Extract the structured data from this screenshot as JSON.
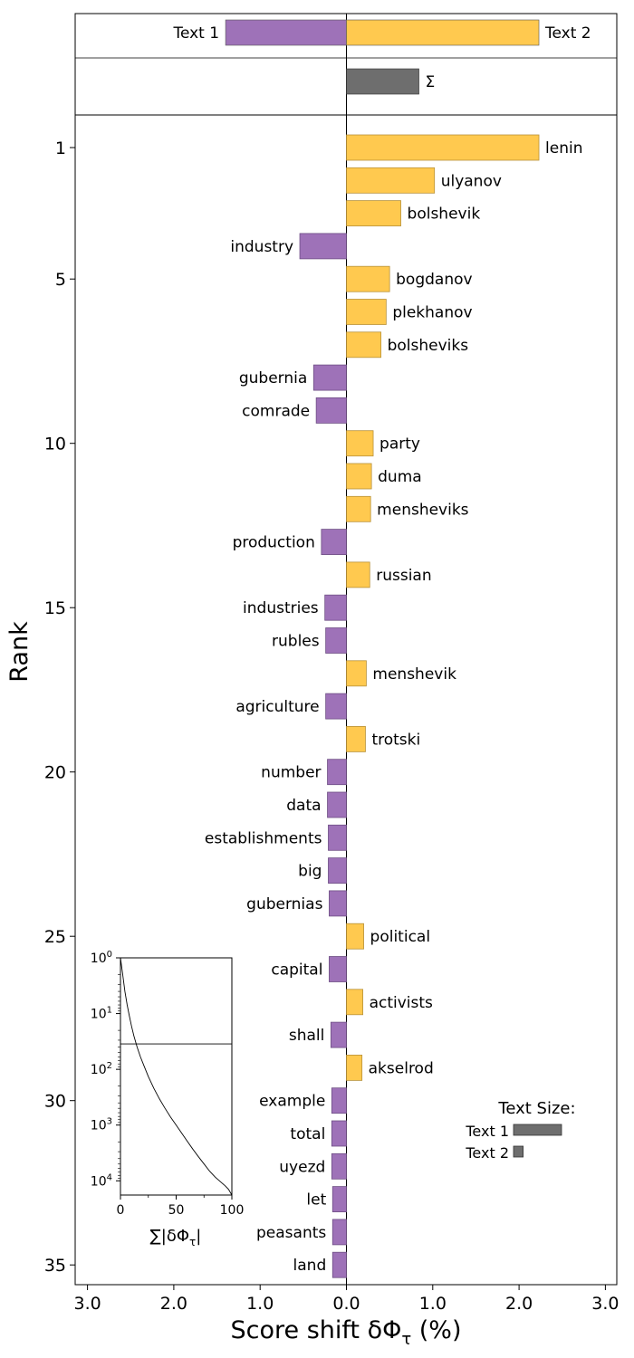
{
  "chart_data": {
    "type": "bar",
    "orientation": "horizontal",
    "xlabel": "Score shift δΦ",
    "xlabel_sub": "τ",
    "xlabel_suffix": " (%)",
    "ylabel": "Rank",
    "xlim": [
      -3.0,
      3.0
    ],
    "x_tick_labels": [
      "3.0",
      "2.0",
      "1.0",
      "0.0",
      "1.0",
      "2.0",
      "3.0"
    ],
    "x_tick_values": [
      -3,
      -2,
      -1,
      0,
      1,
      2,
      3
    ],
    "y_ticks": [
      1,
      5,
      10,
      15,
      20,
      25,
      30,
      35
    ],
    "colors": {
      "text1": "#9e72b8",
      "text2": "#ffc94f",
      "sum": "#6e6e6e"
    },
    "summary": {
      "text1_label": "Text 1",
      "text1_value": -1.4,
      "text2_label": "Text 2",
      "text2_value": 2.23,
      "sum_label": "Σ",
      "sum_value": 0.84
    },
    "words": [
      {
        "rank": 1,
        "word": "lenin",
        "value": 2.23
      },
      {
        "rank": 2,
        "word": "ulyanov",
        "value": 1.02
      },
      {
        "rank": 3,
        "word": "bolshevik",
        "value": 0.63
      },
      {
        "rank": 4,
        "word": "industry",
        "value": -0.54
      },
      {
        "rank": 5,
        "word": "bogdanov",
        "value": 0.5
      },
      {
        "rank": 6,
        "word": "plekhanov",
        "value": 0.46
      },
      {
        "rank": 7,
        "word": "bolsheviks",
        "value": 0.4
      },
      {
        "rank": 8,
        "word": "gubernia",
        "value": -0.38
      },
      {
        "rank": 9,
        "word": "comrade",
        "value": -0.35
      },
      {
        "rank": 10,
        "word": "party",
        "value": 0.31
      },
      {
        "rank": 11,
        "word": "duma",
        "value": 0.29
      },
      {
        "rank": 12,
        "word": "mensheviks",
        "value": 0.28
      },
      {
        "rank": 13,
        "word": "production",
        "value": -0.29
      },
      {
        "rank": 14,
        "word": "russian",
        "value": 0.27
      },
      {
        "rank": 15,
        "word": "industries",
        "value": -0.25
      },
      {
        "rank": 16,
        "word": "rubles",
        "value": -0.24
      },
      {
        "rank": 17,
        "word": "menshevik",
        "value": 0.23
      },
      {
        "rank": 18,
        "word": "agriculture",
        "value": -0.24
      },
      {
        "rank": 19,
        "word": "trotski",
        "value": 0.22
      },
      {
        "rank": 20,
        "word": "number",
        "value": -0.22
      },
      {
        "rank": 21,
        "word": "data",
        "value": -0.22
      },
      {
        "rank": 22,
        "word": "establishments",
        "value": -0.21
      },
      {
        "rank": 23,
        "word": "big",
        "value": -0.21
      },
      {
        "rank": 24,
        "word": "gubernias",
        "value": -0.2
      },
      {
        "rank": 25,
        "word": "political",
        "value": 0.2
      },
      {
        "rank": 26,
        "word": "capital",
        "value": -0.2
      },
      {
        "rank": 27,
        "word": "activists",
        "value": 0.19
      },
      {
        "rank": 28,
        "word": "shall",
        "value": -0.18
      },
      {
        "rank": 29,
        "word": "akselrod",
        "value": 0.18
      },
      {
        "rank": 30,
        "word": "example",
        "value": -0.17
      },
      {
        "rank": 31,
        "word": "total",
        "value": -0.17
      },
      {
        "rank": 32,
        "word": "uyezd",
        "value": -0.17
      },
      {
        "rank": 33,
        "word": "let",
        "value": -0.16
      },
      {
        "rank": 34,
        "word": "peasants",
        "value": -0.16
      },
      {
        "rank": 35,
        "word": "land",
        "value": -0.16
      }
    ],
    "text_size_legend": {
      "title": "Text Size:",
      "items": [
        {
          "label": "Text 1",
          "value": 1.0
        },
        {
          "label": "Text 2",
          "value": 0.2
        }
      ]
    },
    "inset": {
      "xlabel": "∑|δΦ",
      "xlabel_sub": "τ",
      "xlabel_suffix": "|",
      "x_ticks": [
        0,
        50,
        100
      ],
      "y_tick_exponents": [
        "0",
        "1",
        "2",
        "3",
        "4"
      ],
      "y_scale": "log",
      "ylim": [
        1,
        18000
      ],
      "hline_rank": 35,
      "curve": [
        [
          0,
          1
        ],
        [
          2,
          2
        ],
        [
          4,
          4
        ],
        [
          6,
          7
        ],
        [
          8,
          11
        ],
        [
          10,
          17
        ],
        [
          12,
          25
        ],
        [
          15,
          40
        ],
        [
          18,
          60
        ],
        [
          21,
          85
        ],
        [
          25,
          135
        ],
        [
          30,
          220
        ],
        [
          35,
          340
        ],
        [
          40,
          500
        ],
        [
          45,
          720
        ],
        [
          50,
          1000
        ],
        [
          55,
          1400
        ],
        [
          60,
          1950
        ],
        [
          65,
          2700
        ],
        [
          70,
          3700
        ],
        [
          75,
          5000
        ],
        [
          80,
          6700
        ],
        [
          85,
          8600
        ],
        [
          90,
          10500
        ],
        [
          94,
          12300
        ],
        [
          97,
          14200
        ],
        [
          100,
          18000
        ]
      ]
    }
  }
}
